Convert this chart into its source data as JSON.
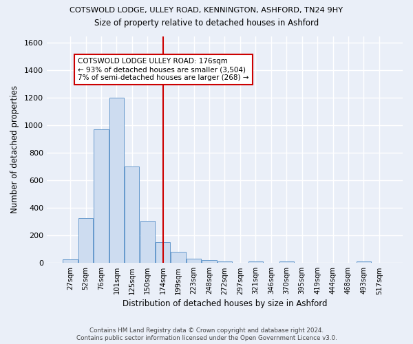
{
  "title": "COTSWOLD LODGE, ULLEY ROAD, KENNINGTON, ASHFORD, TN24 9HY",
  "subtitle": "Size of property relative to detached houses in Ashford",
  "xlabel": "Distribution of detached houses by size in Ashford",
  "ylabel": "Number of detached properties",
  "footnote1": "Contains HM Land Registry data © Crown copyright and database right 2024.",
  "footnote2": "Contains public sector information licensed under the Open Government Licence v3.0.",
  "bar_labels": [
    "27sqm",
    "52sqm",
    "76sqm",
    "101sqm",
    "125sqm",
    "150sqm",
    "174sqm",
    "199sqm",
    "223sqm",
    "248sqm",
    "272sqm",
    "297sqm",
    "321sqm",
    "346sqm",
    "370sqm",
    "395sqm",
    "419sqm",
    "444sqm",
    "468sqm",
    "493sqm",
    "517sqm"
  ],
  "bar_values": [
    25,
    325,
    970,
    1200,
    700,
    305,
    150,
    80,
    30,
    20,
    10,
    0,
    10,
    0,
    10,
    0,
    0,
    0,
    0,
    10,
    0
  ],
  "bar_color": "#cddcf0",
  "bar_edge_color": "#6699cc",
  "vline_x_index": 6,
  "vline_color": "#cc0000",
  "annotation_title": "COTSWOLD LODGE ULLEY ROAD: 176sqm",
  "annotation_line1": "← 93% of detached houses are smaller (3,504)",
  "annotation_line2": "7% of semi-detached houses are larger (268) →",
  "annotation_box_color": "#ffffff",
  "annotation_box_edge": "#cc0000",
  "ylim": [
    0,
    1650
  ],
  "yticks": [
    0,
    200,
    400,
    600,
    800,
    1000,
    1200,
    1400,
    1600
  ],
  "bg_color": "#eaeff8",
  "plot_bg_color": "#eaeff8",
  "grid_color": "#ffffff"
}
